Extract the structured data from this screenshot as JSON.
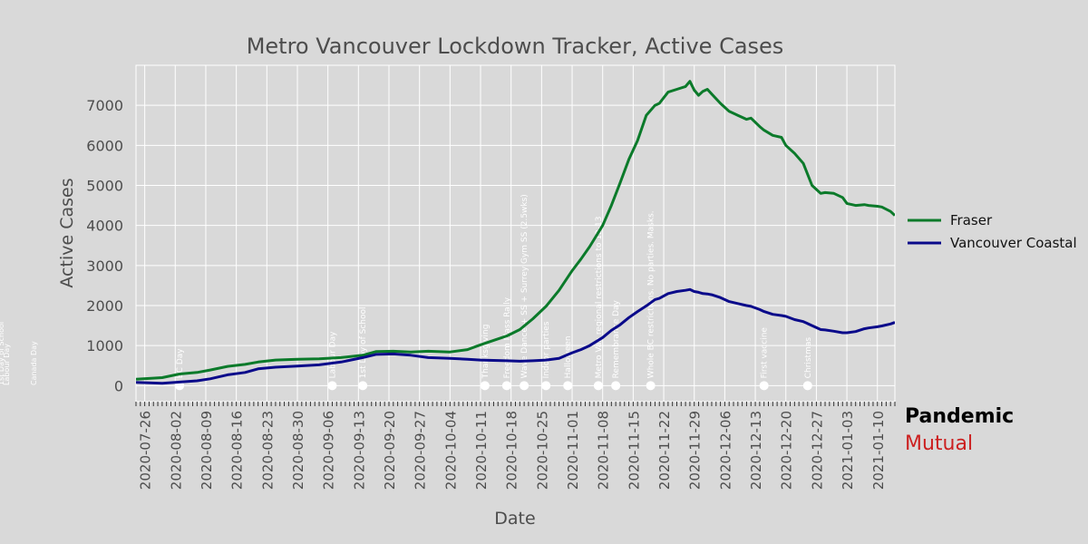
{
  "brand": {
    "line1": "Pandemic",
    "line2": "Mutual"
  },
  "chart_data": {
    "type": "line",
    "title": "Metro Vancouver Lockdown Tracker, Active Cases",
    "xlabel": "Date",
    "ylabel": "Active Cases",
    "xlim": [
      "2020-07-24",
      "2021-01-14"
    ],
    "ylim": [
      -400,
      8000
    ],
    "yticks": [
      0,
      1000,
      2000,
      3000,
      4000,
      5000,
      6000,
      7000
    ],
    "xticks": [
      "2020-07-26",
      "2020-08-02",
      "2020-08-09",
      "2020-08-16",
      "2020-08-23",
      "2020-08-30",
      "2020-09-06",
      "2020-09-13",
      "2020-09-20",
      "2020-09-27",
      "2020-10-04",
      "2020-10-11",
      "2020-10-18",
      "2020-10-25",
      "2020-11-01",
      "2020-11-08",
      "2020-11-15",
      "2020-11-22",
      "2020-11-29",
      "2020-12-06",
      "2020-12-13",
      "2020-12-20",
      "2020-12-27",
      "2021-01-03",
      "2021-01-10"
    ],
    "grid": true,
    "legend_position": "right",
    "series": [
      {
        "name": "Fraser",
        "color": "#0b7a2a",
        "x": [
          "2020-07-24",
          "2020-07-30",
          "2020-08-03",
          "2020-08-07",
          "2020-08-10",
          "2020-08-14",
          "2020-08-18",
          "2020-08-21",
          "2020-08-25",
          "2020-08-30",
          "2020-09-04",
          "2020-09-09",
          "2020-09-14",
          "2020-09-17",
          "2020-09-21",
          "2020-09-25",
          "2020-09-29",
          "2020-10-04",
          "2020-10-08",
          "2020-10-11",
          "2020-10-14",
          "2020-10-17",
          "2020-10-20",
          "2020-10-23",
          "2020-10-26",
          "2020-10-29",
          "2020-11-01",
          "2020-11-03",
          "2020-11-05",
          "2020-11-08",
          "2020-11-10",
          "2020-11-12",
          "2020-11-14",
          "2020-11-16",
          "2020-11-18",
          "2020-11-20",
          "2020-11-21",
          "2020-11-23",
          "2020-11-25",
          "2020-11-27",
          "2020-11-28",
          "2020-11-29",
          "2020-11-30",
          "2020-12-01",
          "2020-12-02",
          "2020-12-03",
          "2020-12-05",
          "2020-12-07",
          "2020-12-09",
          "2020-12-11",
          "2020-12-12",
          "2020-12-14",
          "2020-12-15",
          "2020-12-17",
          "2020-12-19",
          "2020-12-20",
          "2020-12-22",
          "2020-12-24",
          "2020-12-26",
          "2020-12-28",
          "2020-12-29",
          "2020-12-31",
          "2021-01-02",
          "2021-01-03",
          "2021-01-05",
          "2021-01-07",
          "2021-01-08",
          "2021-01-10",
          "2021-01-11",
          "2021-01-13",
          "2021-01-14"
        ],
        "values": [
          160,
          200,
          290,
          330,
          390,
          480,
          530,
          590,
          640,
          660,
          670,
          700,
          760,
          850,
          860,
          840,
          860,
          840,
          900,
          1020,
          1130,
          1240,
          1400,
          1670,
          1980,
          2380,
          2870,
          3160,
          3470,
          4000,
          4500,
          5060,
          5650,
          6120,
          6750,
          7000,
          7050,
          7330,
          7400,
          7470,
          7600,
          7380,
          7250,
          7350,
          7400,
          7280,
          7050,
          6850,
          6750,
          6650,
          6680,
          6470,
          6380,
          6250,
          6200,
          6000,
          5800,
          5550,
          5000,
          4800,
          4820,
          4800,
          4700,
          4550,
          4500,
          4520,
          4500,
          4480,
          4460,
          4350,
          4250
        ]
      },
      {
        "name": "Vancouver Coastal",
        "color": "#0a0a8a",
        "x": [
          "2020-07-24",
          "2020-07-30",
          "2020-08-03",
          "2020-08-07",
          "2020-08-10",
          "2020-08-14",
          "2020-08-18",
          "2020-08-21",
          "2020-08-25",
          "2020-08-30",
          "2020-09-04",
          "2020-09-09",
          "2020-09-14",
          "2020-09-17",
          "2020-09-21",
          "2020-09-25",
          "2020-09-29",
          "2020-10-04",
          "2020-10-08",
          "2020-10-11",
          "2020-10-14",
          "2020-10-17",
          "2020-10-20",
          "2020-10-23",
          "2020-10-26",
          "2020-10-29",
          "2020-11-01",
          "2020-11-03",
          "2020-11-05",
          "2020-11-08",
          "2020-11-10",
          "2020-11-12",
          "2020-11-14",
          "2020-11-16",
          "2020-11-18",
          "2020-11-20",
          "2020-11-21",
          "2020-11-23",
          "2020-11-25",
          "2020-11-27",
          "2020-11-28",
          "2020-11-29",
          "2020-11-30",
          "2020-12-01",
          "2020-12-02",
          "2020-12-03",
          "2020-12-05",
          "2020-12-07",
          "2020-12-09",
          "2020-12-11",
          "2020-12-12",
          "2020-12-14",
          "2020-12-15",
          "2020-12-17",
          "2020-12-19",
          "2020-12-20",
          "2020-12-22",
          "2020-12-24",
          "2020-12-26",
          "2020-12-28",
          "2020-12-29",
          "2020-12-31",
          "2021-01-02",
          "2021-01-03",
          "2021-01-05",
          "2021-01-07",
          "2021-01-08",
          "2021-01-10",
          "2021-01-11",
          "2021-01-13",
          "2021-01-14"
        ],
        "values": [
          80,
          60,
          90,
          120,
          170,
          270,
          330,
          420,
          460,
          490,
          520,
          590,
          700,
          780,
          790,
          760,
          700,
          680,
          660,
          640,
          630,
          620,
          610,
          620,
          640,
          680,
          820,
          900,
          1000,
          1200,
          1380,
          1520,
          1700,
          1850,
          1990,
          2150,
          2180,
          2300,
          2350,
          2380,
          2400,
          2350,
          2330,
          2300,
          2290,
          2270,
          2200,
          2100,
          2050,
          2000,
          1980,
          1900,
          1850,
          1780,
          1750,
          1730,
          1650,
          1600,
          1500,
          1400,
          1390,
          1360,
          1320,
          1320,
          1350,
          1420,
          1440,
          1470,
          1490,
          1540,
          1580
        ]
      }
    ],
    "annotations": [
      {
        "date": "2020-07-01",
        "label": "Canada Day"
      },
      {
        "date": "2020-08-03",
        "label": "BC Day"
      },
      {
        "date": "2020-09-07",
        "label": "Labour Day"
      },
      {
        "date": "2020-09-14",
        "label": "1st Day of School"
      },
      {
        "date": "2020-10-12",
        "label": "Thanksgiving"
      },
      {
        "date": "2020-10-17",
        "label": "Freedom Mass Rally"
      },
      {
        "date": "2020-10-21",
        "label": "Wave Dance + SS + Surrey Gym SS (2.5wks)"
      },
      {
        "date": "2020-10-26",
        "label": "Indoor parties"
      },
      {
        "date": "2020-10-31",
        "label": "Halloween"
      },
      {
        "date": "2020-11-07",
        "label": "Metro Van regional restrictions to 12-13"
      },
      {
        "date": "2020-11-11",
        "label": "Remembrance Day"
      },
      {
        "date": "2020-11-19",
        "label": "Whole BC restrictions. No parties. Masks."
      },
      {
        "date": "2020-12-15",
        "label": "First vaccine"
      },
      {
        "date": "2020-12-25",
        "label": "Christmas"
      }
    ],
    "offchart_labels": [
      "1st Day of School",
      "Labour Day",
      "Canada Day"
    ]
  }
}
